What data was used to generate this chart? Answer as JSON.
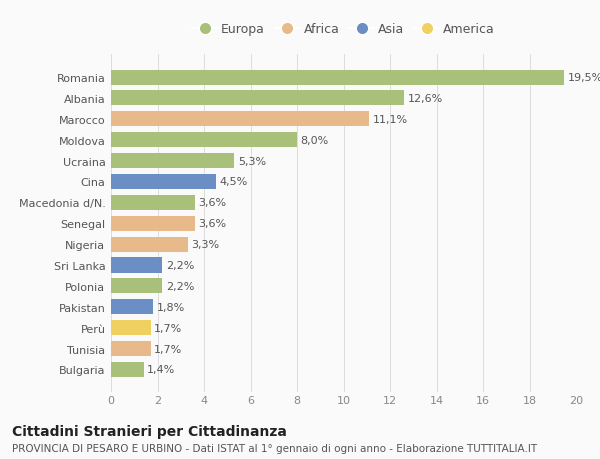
{
  "countries": [
    "Romania",
    "Albania",
    "Marocco",
    "Moldova",
    "Ucraina",
    "Cina",
    "Macedonia d/N.",
    "Senegal",
    "Nigeria",
    "Sri Lanka",
    "Polonia",
    "Pakistan",
    "Perù",
    "Tunisia",
    "Bulgaria"
  ],
  "values": [
    19.5,
    12.6,
    11.1,
    8.0,
    5.3,
    4.5,
    3.6,
    3.6,
    3.3,
    2.2,
    2.2,
    1.8,
    1.7,
    1.7,
    1.4
  ],
  "labels": [
    "19,5%",
    "12,6%",
    "11,1%",
    "8,0%",
    "5,3%",
    "4,5%",
    "3,6%",
    "3,6%",
    "3,3%",
    "2,2%",
    "2,2%",
    "1,8%",
    "1,7%",
    "1,7%",
    "1,4%"
  ],
  "continents": [
    "Europa",
    "Europa",
    "Africa",
    "Europa",
    "Europa",
    "Asia",
    "Europa",
    "Africa",
    "Africa",
    "Asia",
    "Europa",
    "Asia",
    "America",
    "Africa",
    "Europa"
  ],
  "continent_colors": {
    "Europa": "#a8c07a",
    "Africa": "#e8b98a",
    "Asia": "#6b8ec4",
    "America": "#f0d060"
  },
  "legend_order": [
    "Europa",
    "Africa",
    "Asia",
    "America"
  ],
  "xlim": [
    0,
    20
  ],
  "xticks": [
    0,
    2,
    4,
    6,
    8,
    10,
    12,
    14,
    16,
    18,
    20
  ],
  "title": "Cittadini Stranieri per Cittadinanza",
  "subtitle": "PROVINCIA DI PESARO E URBINO - Dati ISTAT al 1° gennaio di ogni anno - Elaborazione TUTTITALIA.IT",
  "background_color": "#fafafa",
  "bar_height": 0.72,
  "label_fontsize": 8,
  "title_fontsize": 10,
  "subtitle_fontsize": 7.5,
  "tick_fontsize": 8,
  "legend_fontsize": 9
}
